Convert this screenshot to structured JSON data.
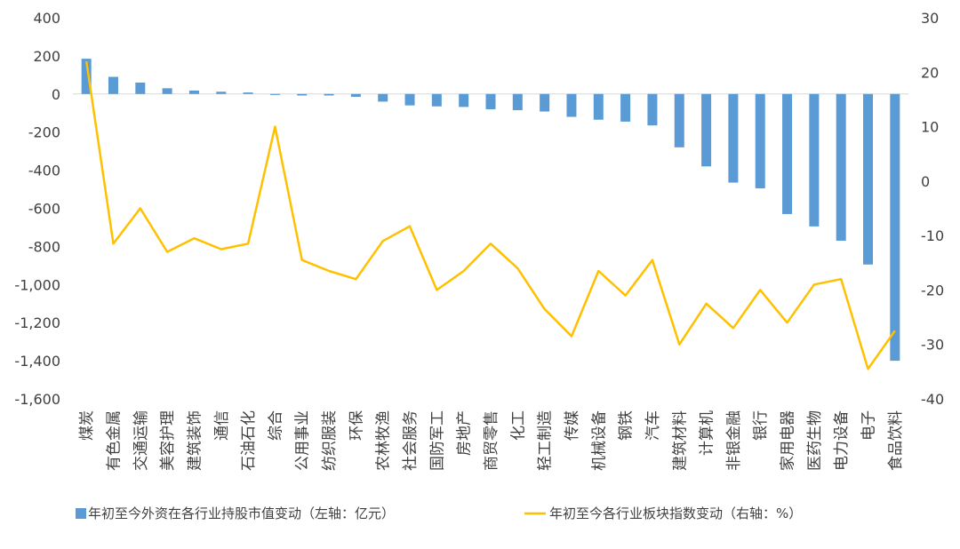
{
  "chart_data": {
    "type": "bar",
    "categories": [
      "煤炭",
      "有色金属",
      "交通运输",
      "美容护理",
      "建筑装饰",
      "通信",
      "石油石化",
      "综合",
      "公用事业",
      "纺织服装",
      "环保",
      "农林牧渔",
      "社会服务",
      "国防军工",
      "房地产",
      "商贸零售",
      "化工",
      "轻工制造",
      "传媒",
      "机械设备",
      "钢铁",
      "汽车",
      "建筑材料",
      "计算机",
      "非银金融",
      "银行",
      "家用电器",
      "医药生物",
      "电力设备",
      "电子",
      "食品饮料"
    ],
    "series": [
      {
        "name": "年初至今外资在各行业持股市值变动（左轴：亿元）",
        "type": "bar",
        "axis": "left",
        "color": "#5B9BD5",
        "values": [
          185,
          90,
          60,
          30,
          18,
          12,
          8,
          -5,
          -8,
          -8,
          -15,
          -40,
          -60,
          -65,
          -68,
          -80,
          -85,
          -92,
          -120,
          -135,
          -145,
          -165,
          -280,
          -380,
          -465,
          -495,
          -630,
          -695,
          -770,
          -895,
          -1400
        ]
      },
      {
        "name": "年初至今各行业板块指数变动（右轴：%）",
        "type": "line",
        "axis": "right",
        "color": "#FFC000",
        "values": [
          22,
          -11.5,
          -5,
          -13,
          -10.5,
          -12.5,
          -11.5,
          10,
          -14.5,
          -16.5,
          -18,
          -11,
          -8.3,
          -20,
          -16.5,
          -11.5,
          -16,
          -23.5,
          -28.5,
          -16.5,
          -21,
          -14.5,
          -30,
          -22.5,
          -27,
          -20,
          -26,
          -19,
          -18,
          -34.5,
          -27.5
        ]
      }
    ],
    "yAxisLeft": {
      "min": -1600,
      "max": 400,
      "step": 200
    },
    "yAxisRight": {
      "min": -40,
      "max": 30,
      "step": 10
    },
    "grid": false,
    "legend_position": "bottom"
  }
}
